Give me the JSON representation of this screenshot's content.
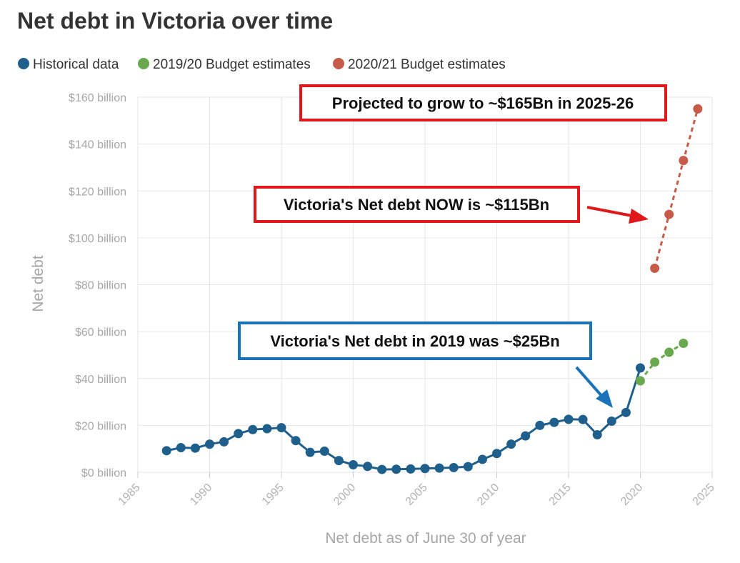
{
  "chart_data": {
    "type": "line",
    "title": "Net debt in Victoria over time",
    "xlabel": "Net debt as of June 30 of year",
    "ylabel": "Net debt",
    "xlim": [
      1985,
      2025
    ],
    "ylim": [
      0,
      160
    ],
    "x_ticks": [
      1985,
      1990,
      1995,
      2000,
      2005,
      2010,
      2015,
      2020,
      2025
    ],
    "y_ticks": [
      0,
      20,
      40,
      60,
      80,
      100,
      120,
      140,
      160
    ],
    "y_tick_labels": [
      "$0 billion",
      "$20 billion",
      "$40 billion",
      "$60 billion",
      "$80 billion",
      "$100 billion",
      "$120 billion",
      "$140 billion",
      "$160 billion"
    ],
    "grid": true,
    "legend_position": "top-left",
    "series": [
      {
        "name": "Historical data",
        "color": "#1f5f8b",
        "style": "solid",
        "x": [
          1987,
          1988,
          1989,
          1990,
          1991,
          1992,
          1993,
          1994,
          1995,
          1996,
          1997,
          1998,
          1999,
          2000,
          2001,
          2002,
          2003,
          2004,
          2005,
          2006,
          2007,
          2008,
          2009,
          2010,
          2011,
          2012,
          2013,
          2014,
          2015,
          2016,
          2017,
          2018,
          2019,
          2020
        ],
        "y": [
          9.2,
          10.5,
          10.3,
          12.0,
          13.0,
          16.5,
          18.2,
          18.6,
          19.0,
          13.5,
          8.5,
          9.0,
          5.0,
          3.2,
          2.5,
          1.2,
          1.3,
          1.4,
          1.6,
          1.8,
          2.0,
          2.4,
          5.5,
          8.0,
          12.0,
          15.5,
          20.0,
          21.3,
          22.6,
          22.5,
          16.0,
          21.8,
          25.5,
          44.5
        ]
      },
      {
        "name": "2019/20 Budget estimates",
        "color": "#6aa84f",
        "style": "dashed",
        "x": [
          2020,
          2021,
          2022,
          2023
        ],
        "y": [
          39.0,
          47.0,
          51.2,
          55.0
        ]
      },
      {
        "name": "2020/21 Budget estimates",
        "color": "#c75b4a",
        "style": "dashed",
        "x": [
          2021,
          2022,
          2023,
          2024
        ],
        "y": [
          87.0,
          110.0,
          133.0,
          155.0
        ]
      }
    ],
    "annotations": [
      {
        "text": "Projected to grow to ~$165Bn in 2025-26",
        "border_color": "#e0181b"
      },
      {
        "text": "Victoria's Net debt NOW is ~$115Bn",
        "border_color": "#e0181b"
      },
      {
        "text": "Victoria's Net debt in 2019 was ~$25Bn",
        "border_color": "#1a73b8"
      }
    ]
  }
}
